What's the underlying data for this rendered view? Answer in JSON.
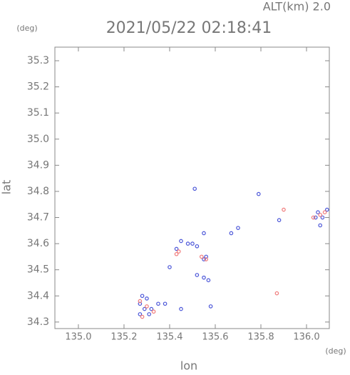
{
  "chart_data": {
    "type": "scatter",
    "title": "2021/05/22 02:18:41",
    "subtitle": "ALT(km) 2.0",
    "y_unit": "(deg)",
    "x_unit": "(deg)",
    "x_label": "lon",
    "y_label": "lat",
    "xlim": [
      134.897,
      136.1
    ],
    "ylim": [
      34.275,
      35.352
    ],
    "xticks": [
      {
        "value": 135,
        "label": "135.0"
      },
      135.2,
      135.4,
      135.6,
      135.8,
      {
        "value": 136,
        "label": "136.0"
      }
    ],
    "yticks": [
      34.3,
      34.4,
      34.5,
      34.6,
      34.7,
      34.8,
      34.9,
      {
        "value": 35,
        "label": "35.0"
      },
      35.1,
      35.2,
      35.3
    ],
    "series": [
      {
        "color": "#4a55d8",
        "x": [
          135.51,
          135.79,
          135.88,
          136.09,
          136.07,
          135.7,
          135.67,
          135.55,
          135.45,
          135.48,
          135.5,
          135.52,
          135.43,
          135.55,
          135.56,
          135.4,
          135.52,
          135.55,
          135.57,
          135.28,
          135.3,
          135.27,
          135.29,
          135.32,
          135.35,
          135.38,
          135.31,
          135.27,
          135.45,
          135.58,
          136.05,
          136.04,
          136.06
        ],
        "y": [
          34.81,
          34.79,
          34.69,
          34.73,
          34.7,
          34.66,
          34.64,
          34.64,
          34.61,
          34.6,
          34.6,
          34.59,
          34.58,
          34.54,
          34.55,
          34.51,
          34.48,
          34.47,
          34.46,
          34.4,
          34.39,
          34.37,
          34.35,
          34.35,
          34.37,
          34.37,
          34.33,
          34.33,
          34.35,
          34.36,
          34.72,
          34.7,
          34.67
        ]
      },
      {
        "color": "#f07a7a",
        "x": [
          135.9,
          135.87,
          136.08,
          136.06,
          136.03,
          135.44,
          135.43,
          135.56,
          135.3,
          135.33,
          135.28,
          135.27,
          135.54
        ],
        "y": [
          34.73,
          34.41,
          34.72,
          34.71,
          34.7,
          34.57,
          34.56,
          34.54,
          34.36,
          34.34,
          34.32,
          34.38,
          34.55
        ]
      }
    ],
    "grid": false
  }
}
